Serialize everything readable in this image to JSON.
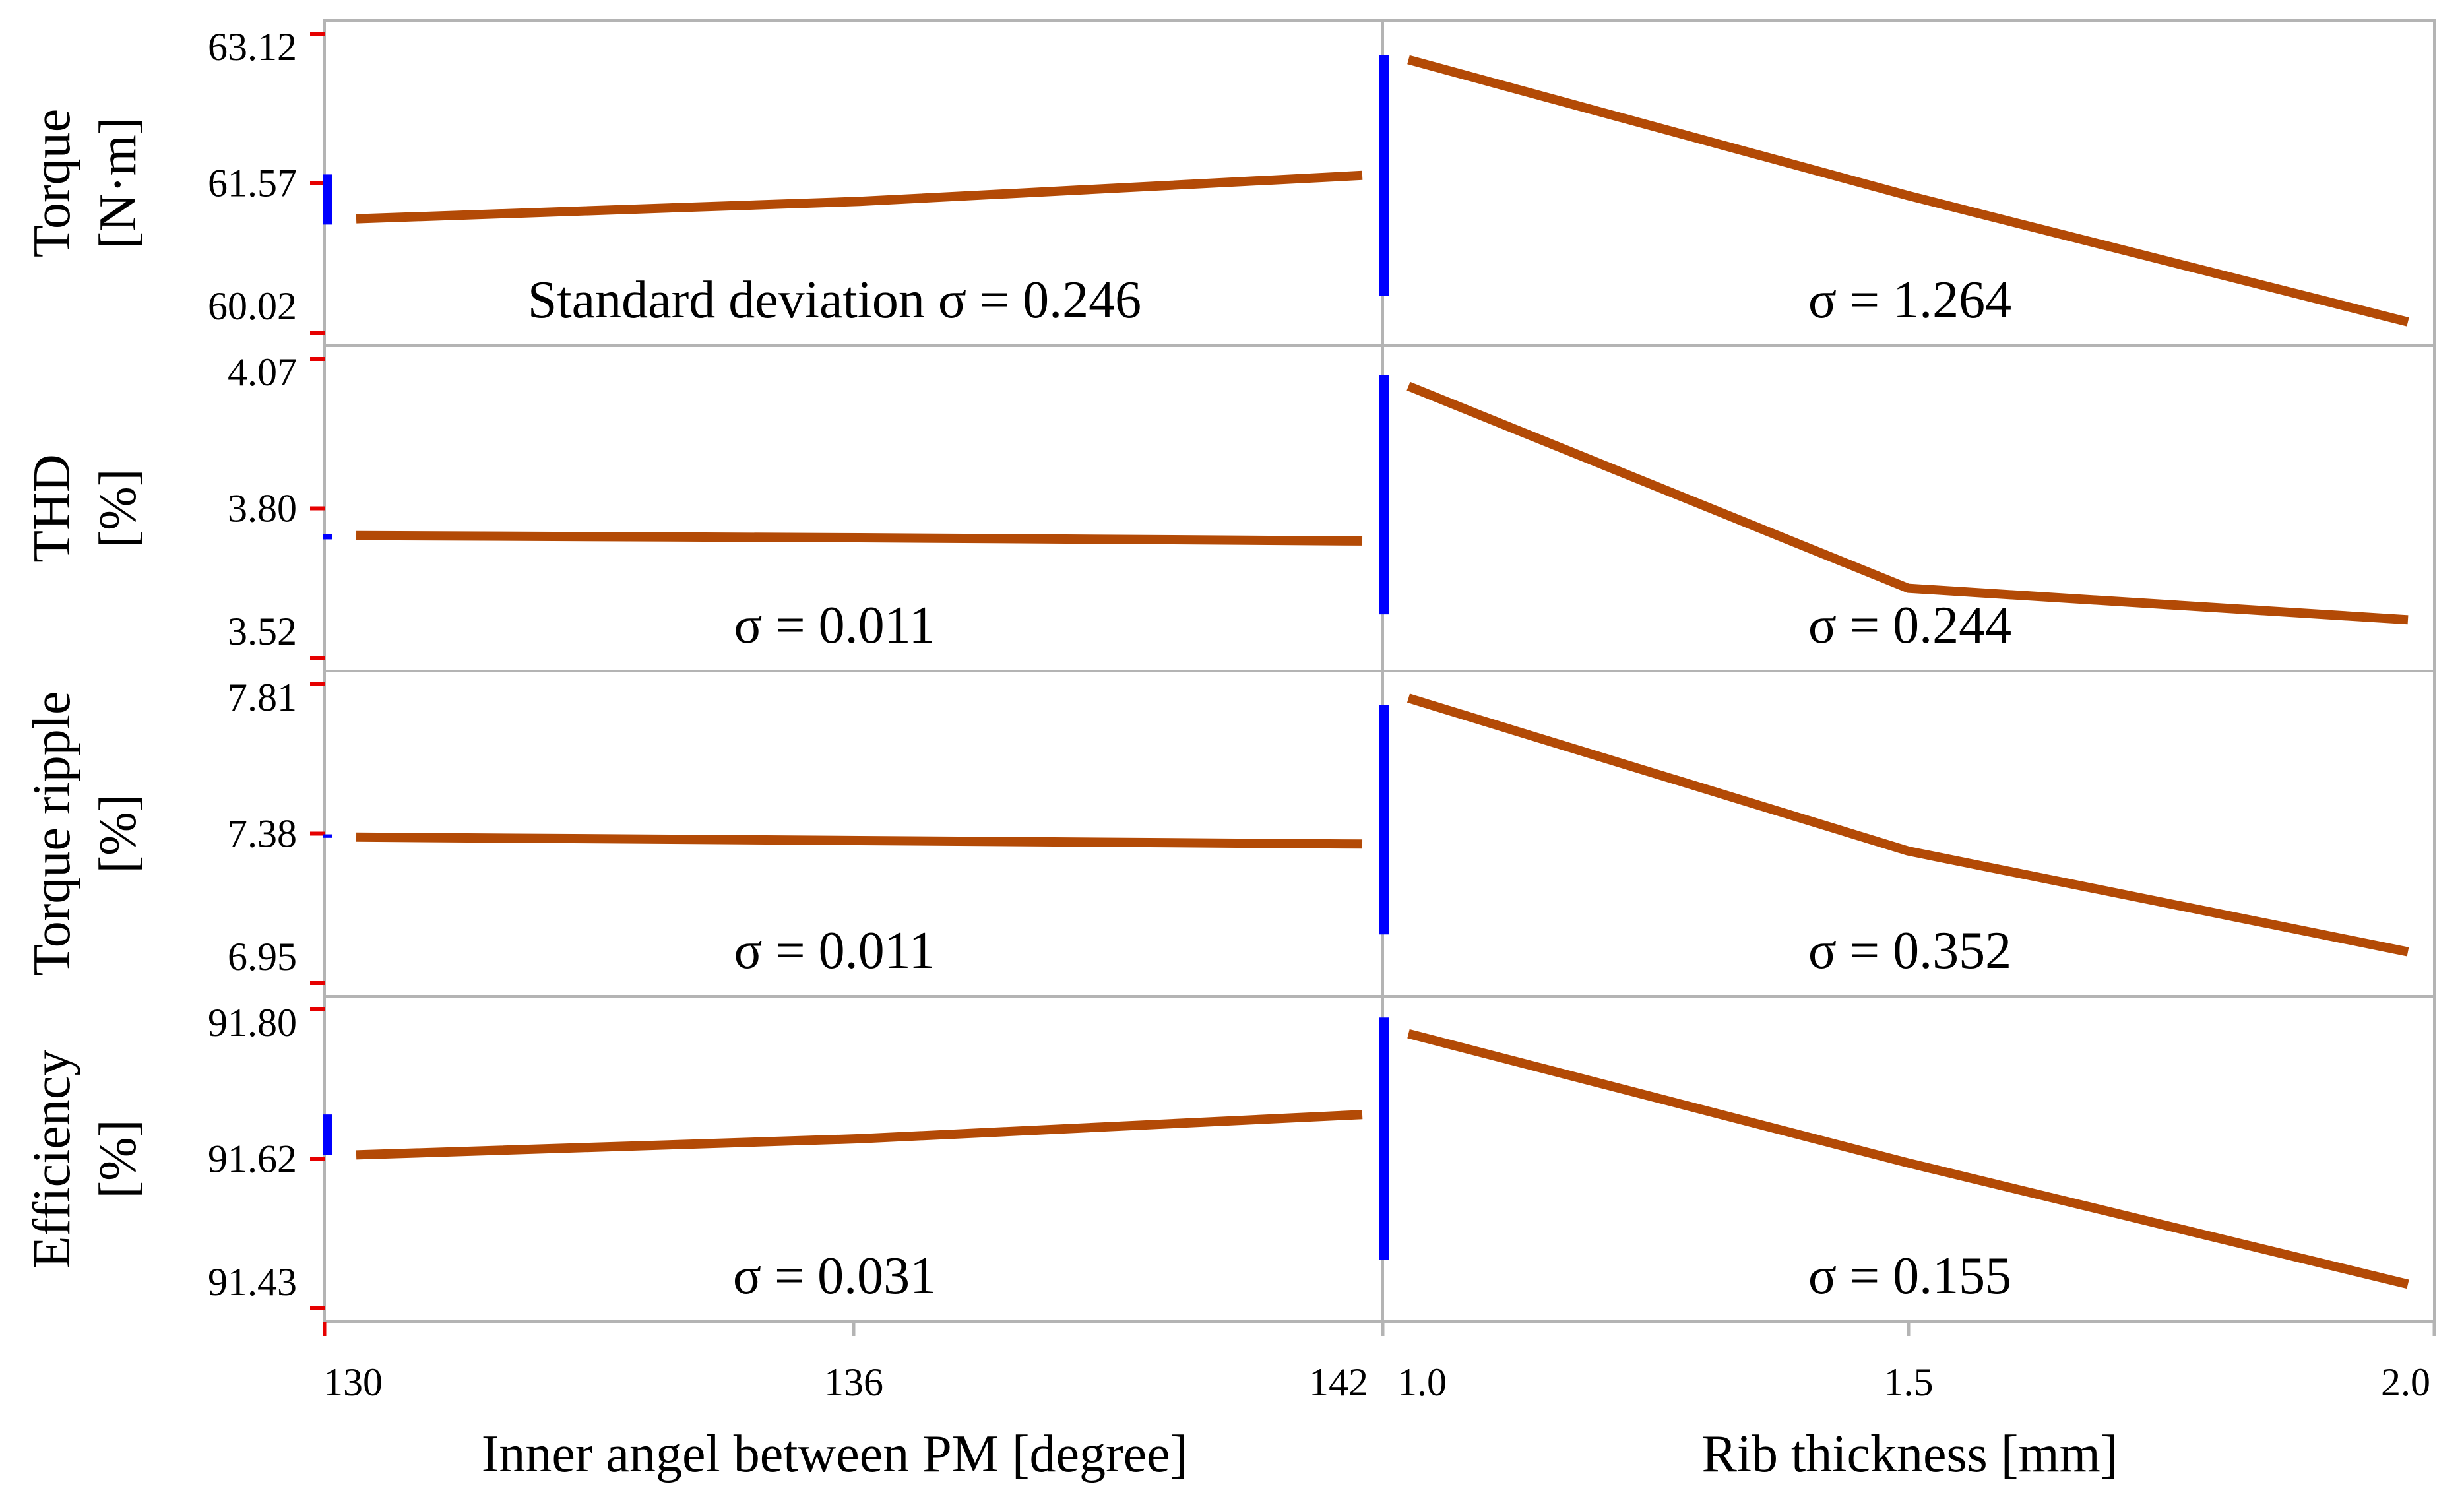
{
  "chart_data": {
    "type": "line",
    "title": "",
    "line_color": "#b34a06",
    "range_bar_color": "#0000ff",
    "tick_color": "#e60000",
    "frame_color": "#b4b4b4",
    "factors": [
      {
        "id": "angle",
        "xlabel": "Inner angel between PM [degree]",
        "x": [
          130,
          136,
          142
        ],
        "tick_labels": [
          "130",
          "136",
          "142"
        ]
      },
      {
        "id": "rib",
        "xlabel": "Rib thickness [mm]",
        "x": [
          1.0,
          1.5,
          2.0
        ],
        "tick_labels": [
          "1.0",
          "1.5",
          "2.0"
        ]
      }
    ],
    "responses": [
      {
        "ylabel_line1": "Torque",
        "ylabel_line2": "[N·m]",
        "ylim": [
          60.02,
          63.12
        ],
        "yticks": [
          "63.12",
          "61.57",
          "60.02"
        ],
        "series": [
          {
            "factor": "angle",
            "values": [
              61.2,
              61.38,
              61.65
            ],
            "sigma_label": "Standard deviation σ = 0.246",
            "bar_range": [
              61.14,
              61.66
            ]
          },
          {
            "factor": "rib",
            "values": [
              62.85,
              61.44,
              60.13
            ],
            "sigma_label": "σ = 1.264",
            "bar_range": [
              60.4,
              62.9
            ]
          }
        ]
      },
      {
        "ylabel_line1": "THD",
        "ylabel_line2": "[%]",
        "ylim": [
          3.52,
          4.07
        ],
        "yticks": [
          "4.07",
          "3.80",
          "3.52"
        ],
        "series": [
          {
            "factor": "angle",
            "values": [
              3.745,
              3.741,
              3.735
            ],
            "sigma_label": "σ = 0.011",
            "bar_range": [
              3.738,
              3.748
            ]
          },
          {
            "factor": "rib",
            "values": [
              4.02,
              3.648,
              3.59
            ],
            "sigma_label": "σ = 0.244",
            "bar_range": [
              3.6,
              4.04
            ]
          }
        ]
      },
      {
        "ylabel_line1": "Torque ripple",
        "ylabel_line2": "[%]",
        "ylim": [
          6.95,
          7.81
        ],
        "yticks": [
          "7.81",
          "7.38",
          "6.95"
        ],
        "series": [
          {
            "factor": "angle",
            "values": [
              7.37,
              7.36,
              7.35
            ],
            "sigma_label": "σ = 0.011",
            "bar_range": [
              7.368,
              7.378
            ]
          },
          {
            "factor": "rib",
            "values": [
              7.77,
              7.33,
              7.04
            ],
            "sigma_label": "σ = 0.352",
            "bar_range": [
              7.09,
              7.75
            ]
          }
        ]
      },
      {
        "ylabel_line1": "Efficiency",
        "ylabel_line2": "[%]",
        "ylim": [
          91.43,
          91.8
        ],
        "yticks": [
          "91.80",
          "91.62",
          "91.43"
        ],
        "series": [
          {
            "factor": "angle",
            "values": [
              91.62,
              91.64,
              91.67
            ],
            "sigma_label": "σ = 0.031",
            "bar_range": [
              91.62,
              91.67
            ]
          },
          {
            "factor": "rib",
            "values": [
              91.77,
              91.61,
              91.46
            ],
            "sigma_label": "σ = 0.155",
            "bar_range": [
              91.49,
              91.79
            ]
          }
        ]
      }
    ]
  }
}
